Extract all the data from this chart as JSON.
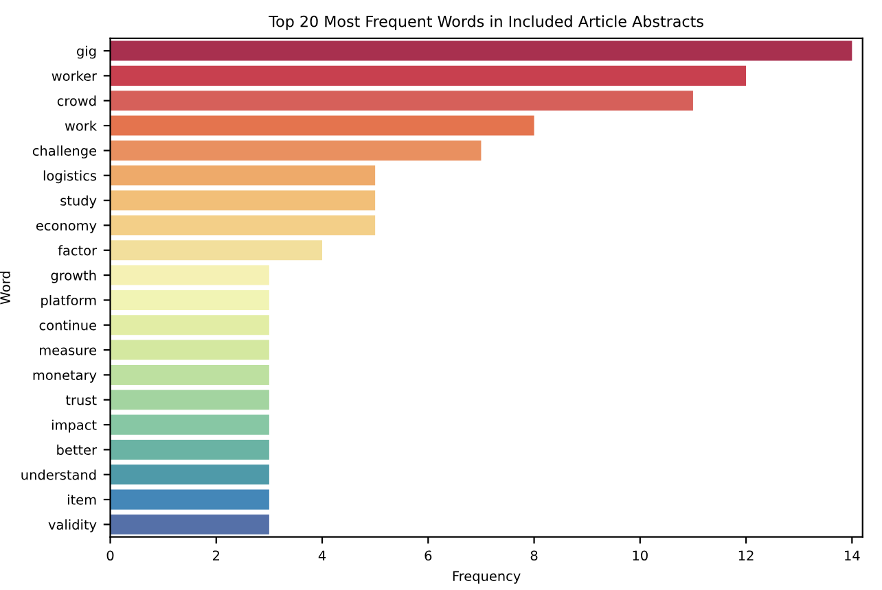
{
  "chart_data": {
    "type": "bar",
    "orientation": "horizontal",
    "title": "Top 20 Most Frequent Words in Included Article Abstracts",
    "xlabel": "Frequency",
    "ylabel": "Word",
    "categories": [
      "gig",
      "worker",
      "crowd",
      "work",
      "challenge",
      "logistics",
      "study",
      "economy",
      "factor",
      "growth",
      "platform",
      "continue",
      "measure",
      "monetary",
      "trust",
      "impact",
      "better",
      "understand",
      "item",
      "validity"
    ],
    "values": [
      14,
      12,
      11,
      8,
      7,
      5,
      5,
      5,
      4,
      3,
      3,
      3,
      3,
      3,
      3,
      3,
      3,
      3,
      3,
      3
    ],
    "colors": [
      "#a8304f",
      "#c8404f",
      "#d6605a",
      "#e4744e",
      "#e99060",
      "#eeaa6a",
      "#f2bf78",
      "#f3cf88",
      "#f2df9c",
      "#f5f1b4",
      "#f1f4b4",
      "#e2eda5",
      "#d4e8a0",
      "#bde0a0",
      "#a3d4a0",
      "#87c7a4",
      "#6ab3a4",
      "#4f9aa9",
      "#4487b8",
      "#5570a8"
    ],
    "xlim": [
      0,
      14.2
    ],
    "xticks": [
      0,
      2,
      4,
      6,
      8,
      10,
      12,
      14
    ],
    "grid": false,
    "legend": false
  }
}
